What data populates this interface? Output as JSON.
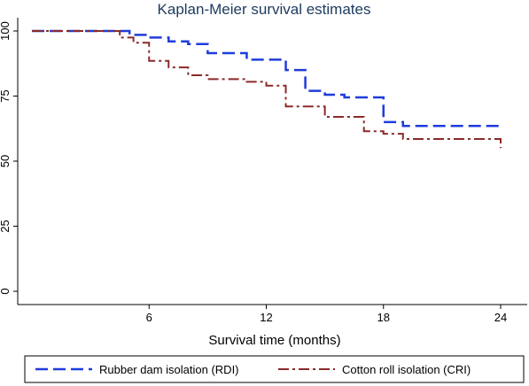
{
  "chart_data": {
    "type": "line",
    "title": "Kaplan-Meier survival estimates",
    "xlabel": "Survival time (months)",
    "ylabel": "",
    "xlim": [
      0,
      24.7
    ],
    "ylim": [
      0,
      100
    ],
    "xticks": [
      6,
      12,
      18,
      24
    ],
    "yticks": [
      0,
      25,
      50,
      75,
      100
    ],
    "grid": false,
    "legend_position": "bottom",
    "series": [
      {
        "name": "Rubber dam isolation (RDI)",
        "color": "#1f3cdb",
        "style": "dashed",
        "steps": [
          [
            0,
            100
          ],
          [
            5,
            98.5
          ],
          [
            6,
            97.5
          ],
          [
            7,
            96
          ],
          [
            8,
            95
          ],
          [
            9,
            91.5
          ],
          [
            11,
            89
          ],
          [
            13,
            85
          ],
          [
            14,
            77
          ],
          [
            15,
            75.5
          ],
          [
            16,
            74.5
          ],
          [
            18,
            65
          ],
          [
            19,
            63.5
          ],
          [
            24,
            63.5
          ]
        ]
      },
      {
        "name": "Cotton roll isolation (CRI)",
        "color": "#8b2a2a",
        "style": "dashdot",
        "steps": [
          [
            0,
            100
          ],
          [
            4.5,
            97.5
          ],
          [
            5.2,
            95.5
          ],
          [
            6,
            88.5
          ],
          [
            7,
            86
          ],
          [
            8,
            83
          ],
          [
            9,
            81.5
          ],
          [
            11,
            80.5
          ],
          [
            12,
            79
          ],
          [
            13,
            71
          ],
          [
            15,
            67
          ],
          [
            17,
            61.5
          ],
          [
            18,
            60.5
          ],
          [
            19,
            58.5
          ],
          [
            24,
            58.5
          ],
          [
            24,
            55
          ]
        ]
      }
    ]
  }
}
